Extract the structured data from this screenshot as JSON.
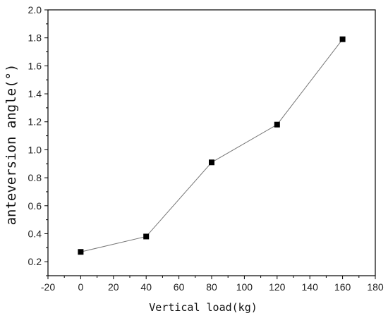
{
  "chart_data": {
    "type": "line",
    "title": "",
    "xlabel": "Vertical load(kg)",
    "ylabel": "anteversion angle(°)",
    "xlim": [
      -20,
      180
    ],
    "ylim": [
      0.1,
      2.0
    ],
    "x_ticks": [
      -20,
      0,
      20,
      40,
      60,
      80,
      100,
      120,
      140,
      160,
      180
    ],
    "y_ticks": [
      0.2,
      0.4,
      0.6,
      0.8,
      1.0,
      1.2,
      1.4,
      1.6,
      1.8,
      2.0
    ],
    "y_tick_labels": [
      "0.2",
      "0.4",
      "0.6",
      "0.8",
      "1.0",
      "1.2",
      "1.4",
      "1.6",
      "1.8",
      "2.0"
    ],
    "grid": false,
    "series": [
      {
        "x": [
          0,
          40,
          80,
          120,
          160
        ],
        "y": [
          0.27,
          0.38,
          0.91,
          1.18,
          1.79
        ],
        "color": "#000000",
        "line_color": "#777777",
        "marker": "square"
      }
    ]
  }
}
